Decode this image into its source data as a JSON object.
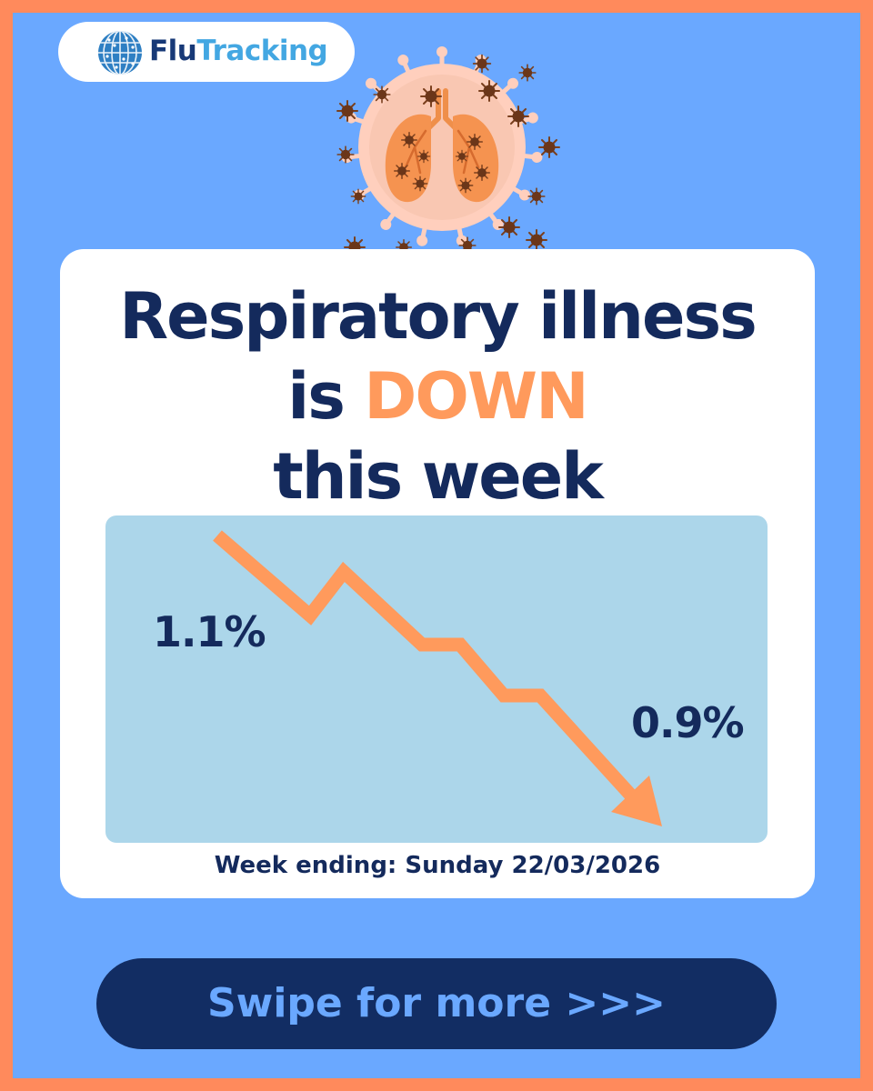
{
  "brand": {
    "logo_part1": "Flu",
    "logo_part2": "Tracking"
  },
  "headline": {
    "line1": "Respiratory illness",
    "line2_prefix": "is ",
    "line2_accent": "DOWN",
    "line3": "this week"
  },
  "trend": {
    "start_value": "1.1%",
    "end_value": "0.9%",
    "direction": "down"
  },
  "week_ending": "Week ending: Sunday 22/03/2026",
  "swipe_button": "Swipe for more >>>",
  "colors": {
    "frame": "#ff8a5c",
    "background": "#6aa8ff",
    "navy": "#142a5c",
    "accent_orange": "#ff9a5c",
    "chart_panel": "#acd6ea",
    "logo_blue": "#43a7e2"
  },
  "icons": {
    "logo": "globe-icon",
    "illustration": "virus-lungs-illustration",
    "trend": "trend-down-arrow"
  }
}
